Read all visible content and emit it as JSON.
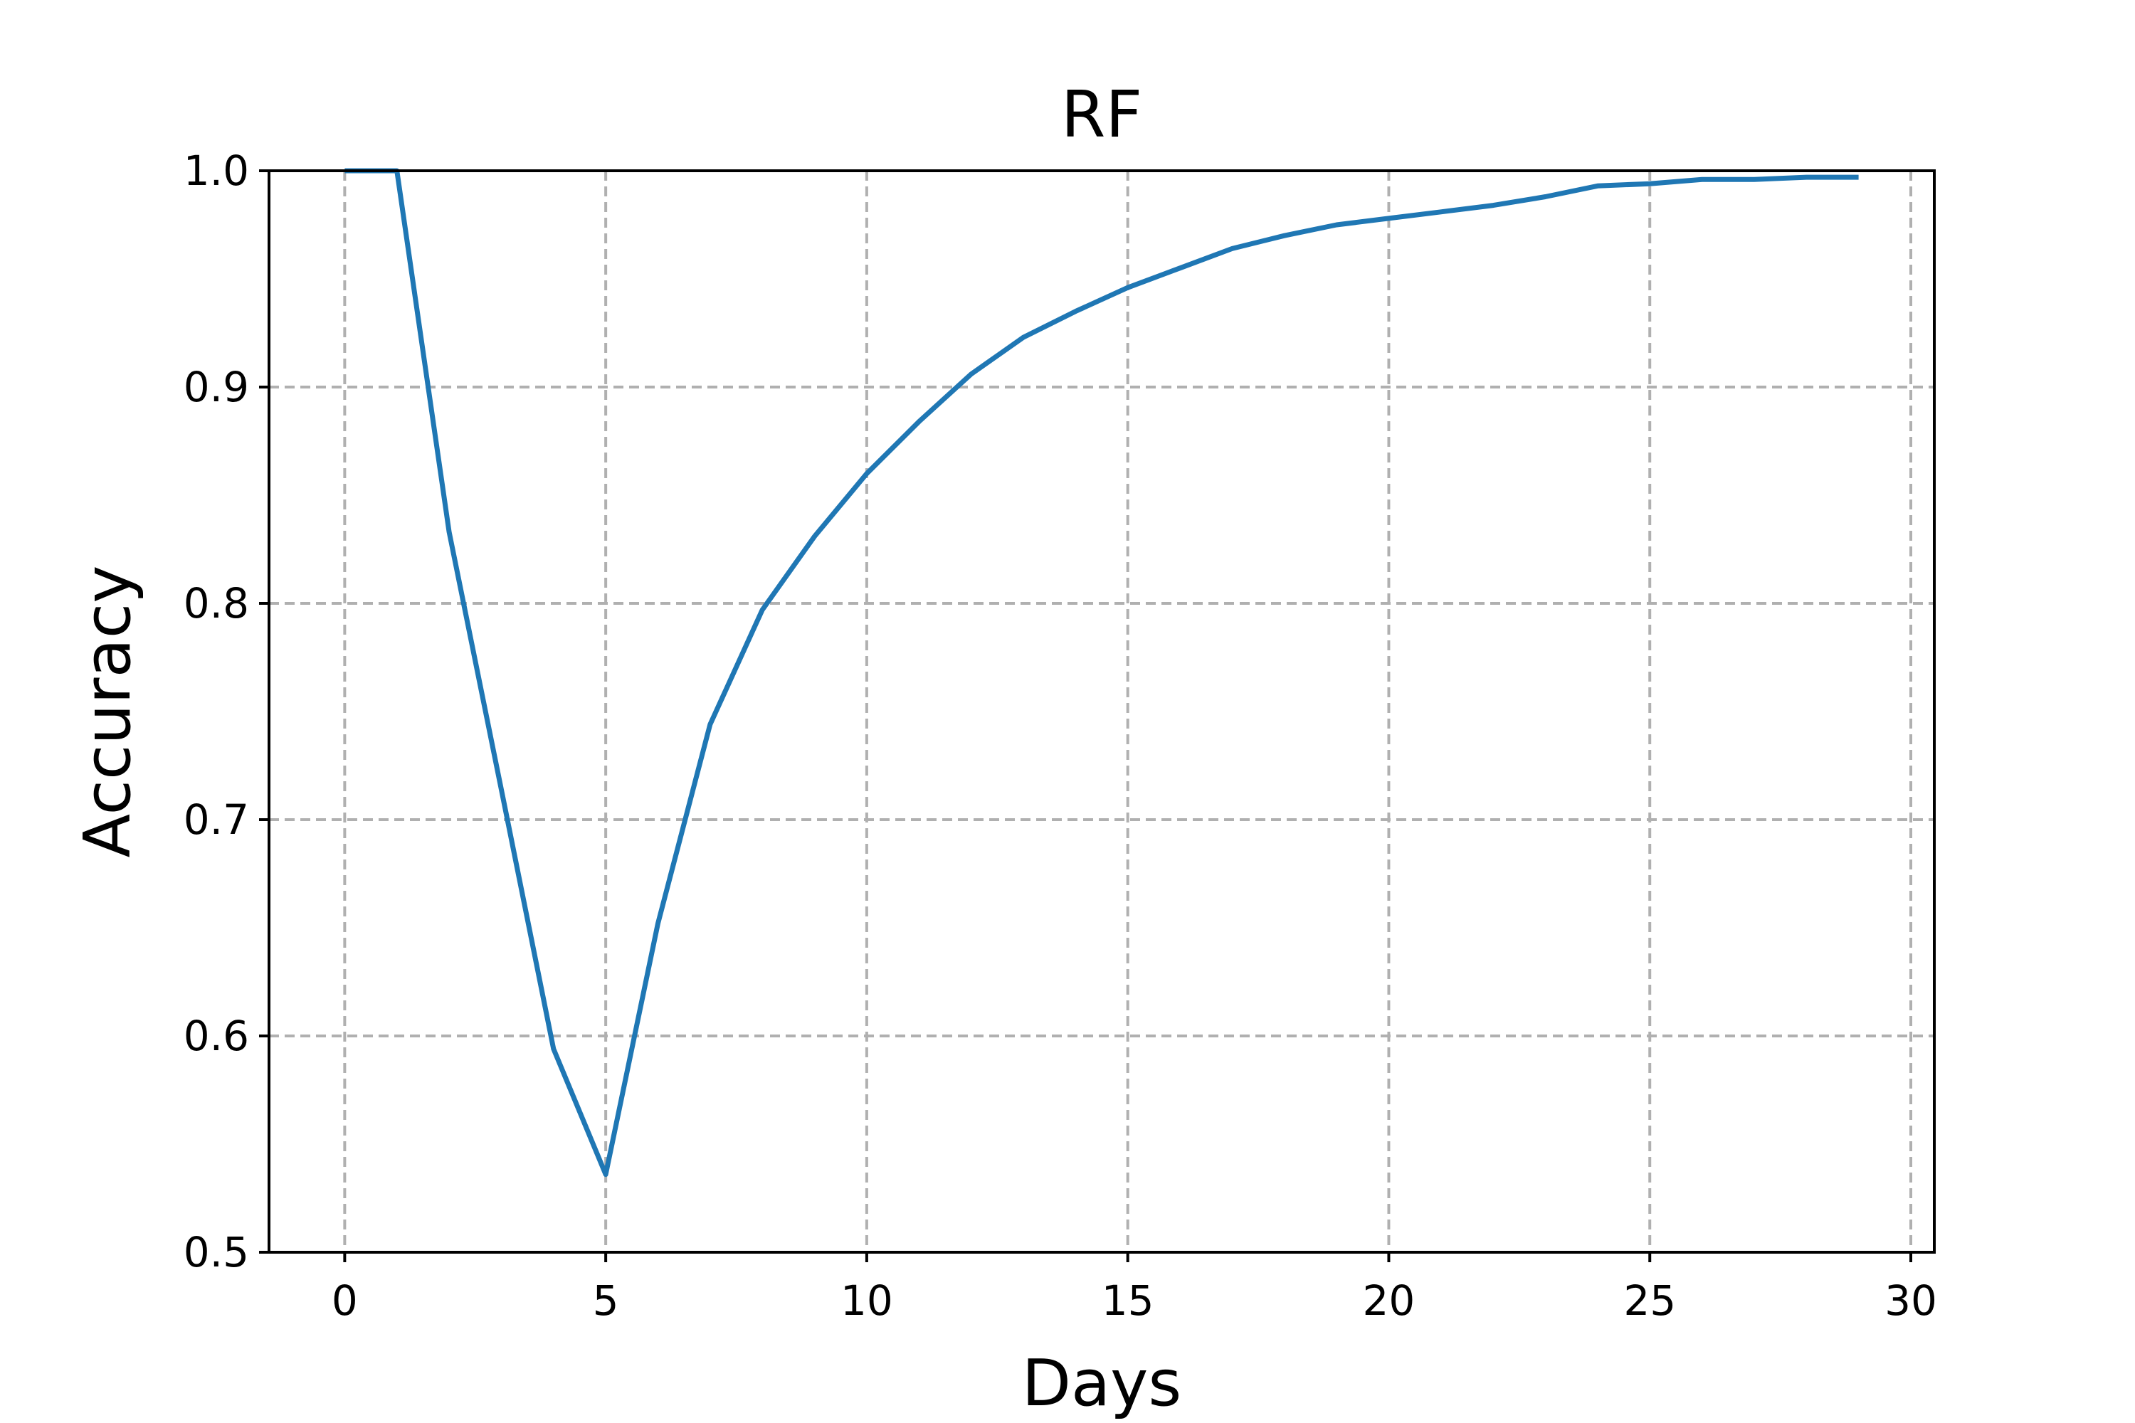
{
  "chart_data": {
    "type": "line",
    "title": "RF",
    "xlabel": "Days",
    "ylabel": "Accuracy",
    "xlim": [
      -1.45,
      30.45
    ],
    "ylim": [
      0.5,
      1.0
    ],
    "xticks": [
      0,
      5,
      10,
      15,
      20,
      25,
      30
    ],
    "yticks": [
      0.5,
      0.6,
      0.7,
      0.8,
      0.9,
      1.0
    ],
    "xtick_labels": [
      "0",
      "5",
      "10",
      "15",
      "20",
      "25",
      "30"
    ],
    "ytick_labels": [
      "0.5",
      "0.6",
      "0.7",
      "0.8",
      "0.9",
      "1.0"
    ],
    "grid": true,
    "series": [
      {
        "color": "#1f77b4",
        "x": [
          0,
          1,
          2,
          3,
          4,
          5,
          6,
          7,
          8,
          9,
          10,
          11,
          12,
          13,
          14,
          15,
          16,
          17,
          18,
          19,
          20,
          21,
          22,
          23,
          24,
          25,
          26,
          27,
          28,
          29
        ],
        "y": [
          1.0,
          1.0,
          0.833,
          0.714,
          0.594,
          0.536,
          0.652,
          0.744,
          0.797,
          0.831,
          0.86,
          0.884,
          0.906,
          0.923,
          0.935,
          0.946,
          0.955,
          0.964,
          0.97,
          0.975,
          0.978,
          0.981,
          0.984,
          0.988,
          0.993,
          0.994,
          0.996,
          0.996,
          0.997,
          0.997
        ]
      }
    ]
  }
}
